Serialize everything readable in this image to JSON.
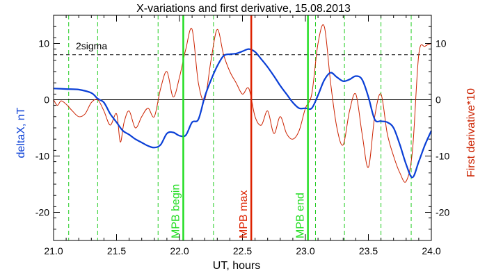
{
  "chart_data": {
    "type": "line",
    "title": "X-variations and first derivative, 15.08.2013",
    "xlabel": "UT, hours",
    "ylabel_left": "deltaX, nT",
    "ylabel_right": "First derivative*10",
    "xlim": [
      21.0,
      24.0
    ],
    "ylim": [
      -25,
      15
    ],
    "x_ticks": [
      "21.0",
      "21.5",
      "22.0",
      "22.5",
      "23.0",
      "23.5",
      "24.0"
    ],
    "x_tick_values": [
      21.0,
      21.5,
      22.0,
      22.5,
      23.0,
      23.5,
      24.0
    ],
    "y_ticks": [
      "-20",
      "-10",
      "0",
      "10"
    ],
    "y_tick_values": [
      -20,
      -10,
      0,
      10
    ],
    "grid": false,
    "colors": {
      "deltaX": "#0a3fd6",
      "derivative": "#cc2200",
      "mpb_edges": "#22dd22",
      "mpb_max": "#dd2200",
      "dashed_green": "#22cc22",
      "axes": "#000000"
    },
    "series": [
      {
        "key": "deltaX",
        "color": "#0a3fd6",
        "x": [
          21.0,
          21.1,
          21.2,
          21.3,
          21.35,
          21.4,
          21.45,
          21.5,
          21.55,
          21.6,
          21.65,
          21.7,
          21.75,
          21.8,
          21.85,
          21.9,
          21.95,
          22.0,
          22.05,
          22.1,
          22.15,
          22.2,
          22.25,
          22.3,
          22.35,
          22.4,
          22.45,
          22.5,
          22.55,
          22.6,
          22.65,
          22.7,
          22.75,
          22.8,
          22.85,
          22.9,
          22.95,
          23.0,
          23.05,
          23.1,
          23.15,
          23.2,
          23.25,
          23.3,
          23.35,
          23.4,
          23.45,
          23.5,
          23.55,
          23.6,
          23.65,
          23.7,
          23.75,
          23.8,
          23.85,
          23.9,
          23.95,
          24.0
        ],
        "values": [
          2.0,
          1.9,
          1.8,
          1.2,
          0.2,
          -0.5,
          -2.5,
          -4.0,
          -5.5,
          -6.2,
          -7.0,
          -7.6,
          -8.2,
          -8.5,
          -8.0,
          -6.0,
          -5.8,
          -6.4,
          -6.3,
          -4.0,
          -3.5,
          0.5,
          3.5,
          6.0,
          7.8,
          8.1,
          8.2,
          8.6,
          9.0,
          8.5,
          7.2,
          5.8,
          4.2,
          2.5,
          1.0,
          -0.5,
          -1.5,
          -1.5,
          -1.5,
          0.8,
          3.5,
          4.8,
          4.0,
          3.3,
          3.6,
          4.2,
          3.6,
          0.5,
          -3.5,
          -3.8,
          -4.0,
          -5.0,
          -8.0,
          -11.5,
          -13.8,
          -11.0,
          -8.0,
          -5.5
        ]
      },
      {
        "key": "derivative",
        "color": "#cc2200",
        "x": [
          21.0,
          21.03,
          21.06,
          21.1,
          21.15,
          21.2,
          21.25,
          21.3,
          21.35,
          21.4,
          21.45,
          21.5,
          21.53,
          21.56,
          21.6,
          21.65,
          21.7,
          21.75,
          21.8,
          21.85,
          21.9,
          21.95,
          22.0,
          22.05,
          22.1,
          22.15,
          22.2,
          22.25,
          22.3,
          22.35,
          22.4,
          22.45,
          22.5,
          22.55,
          22.6,
          22.65,
          22.7,
          22.75,
          22.8,
          22.85,
          22.9,
          22.95,
          23.0,
          23.05,
          23.1,
          23.15,
          23.2,
          23.25,
          23.3,
          23.35,
          23.4,
          23.45,
          23.5,
          23.55,
          23.6,
          23.65,
          23.7,
          23.75,
          23.8,
          23.85,
          23.9,
          23.95,
          24.0
        ],
        "values": [
          0.0,
          -1.0,
          -0.2,
          -0.8,
          -2.0,
          -3.0,
          -2.5,
          -0.5,
          0.0,
          -2.0,
          -4.5,
          -2.5,
          -7.5,
          -4.0,
          -2.0,
          -5.0,
          -3.0,
          -1.5,
          -3.0,
          2.0,
          5.0,
          0.5,
          4.0,
          9.0,
          12.5,
          3.0,
          0.0,
          7.0,
          12.5,
          8.0,
          5.0,
          3.0,
          1.0,
          2.0,
          -3.0,
          -4.5,
          -2.0,
          -6.0,
          -3.0,
          -6.0,
          -7.0,
          -5.5,
          -1.5,
          1.0,
          10.0,
          13.0,
          3.0,
          -5.0,
          -8.0,
          -2.0,
          1.0,
          -6.0,
          -12.0,
          -3.0,
          1.0,
          -6.0,
          -10.0,
          -13.0,
          -14.5,
          -9.0,
          8.0,
          9.5,
          10.0
        ]
      }
    ],
    "reference_lines": {
      "zero_level": 0,
      "two_sigma_level": 8,
      "two_sigma_label": "2sigma"
    },
    "vertical_markers": {
      "mpb_begin": {
        "x": 22.03,
        "label": "MPB begin",
        "color": "#22dd22"
      },
      "mpb_max": {
        "x": 22.57,
        "label": "MPB max",
        "color": "#dd2200"
      },
      "mpb_end": {
        "x": 23.02,
        "label": "MPB end",
        "color": "#22dd22"
      },
      "dashed": [
        21.12,
        21.35,
        21.83,
        22.27,
        23.08,
        23.31,
        23.6,
        23.84
      ]
    }
  }
}
